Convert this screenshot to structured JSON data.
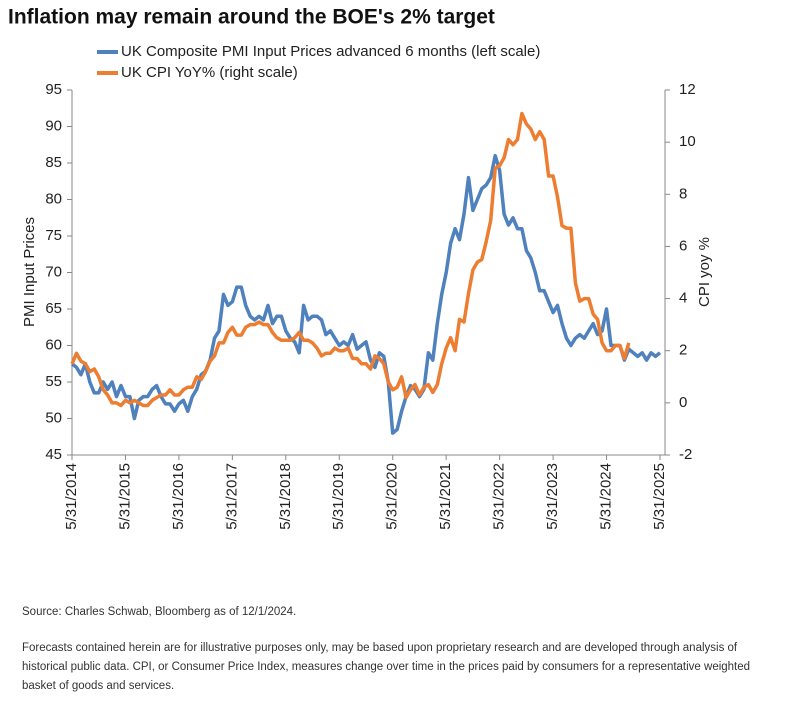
{
  "chart_data": {
    "type": "line",
    "title": "Inflation may remain around the BOE's 2% target",
    "y_label": "PMI Input Prices",
    "y2_label": "CPI yoy %",
    "source": "Source: Charles Schwab, Bloomberg as of 12/1/2024.",
    "note": "Forecasts contained herein are for illustrative purposes only, may be based upon proprietary research and are developed through analysis of historical public data. CPI, or Consumer Price Index, measures change over time in the prices paid by consumers for a representative weighted basket of goods and services.",
    "x": [
      "2014-05",
      "2014-06",
      "2014-07",
      "2014-08",
      "2014-09",
      "2014-10",
      "2014-11",
      "2014-12",
      "2015-01",
      "2015-02",
      "2015-03",
      "2015-04",
      "2015-05",
      "2015-06",
      "2015-07",
      "2015-08",
      "2015-09",
      "2015-10",
      "2015-11",
      "2015-12",
      "2016-01",
      "2016-02",
      "2016-03",
      "2016-04",
      "2016-05",
      "2016-06",
      "2016-07",
      "2016-08",
      "2016-09",
      "2016-10",
      "2016-11",
      "2016-12",
      "2017-01",
      "2017-02",
      "2017-03",
      "2017-04",
      "2017-05",
      "2017-06",
      "2017-07",
      "2017-08",
      "2017-09",
      "2017-10",
      "2017-11",
      "2017-12",
      "2018-01",
      "2018-02",
      "2018-03",
      "2018-04",
      "2018-05",
      "2018-06",
      "2018-07",
      "2018-08",
      "2018-09",
      "2018-10",
      "2018-11",
      "2018-12",
      "2019-01",
      "2019-02",
      "2019-03",
      "2019-04",
      "2019-05",
      "2019-06",
      "2019-07",
      "2019-08",
      "2019-09",
      "2019-10",
      "2019-11",
      "2019-12",
      "2020-01",
      "2020-02",
      "2020-03",
      "2020-04",
      "2020-05",
      "2020-06",
      "2020-07",
      "2020-08",
      "2020-09",
      "2020-10",
      "2020-11",
      "2020-12",
      "2021-01",
      "2021-02",
      "2021-03",
      "2021-04",
      "2021-05",
      "2021-06",
      "2021-07",
      "2021-08",
      "2021-09",
      "2021-10",
      "2021-11",
      "2021-12",
      "2022-01",
      "2022-02",
      "2022-03",
      "2022-04",
      "2022-05",
      "2022-06",
      "2022-07",
      "2022-08",
      "2022-09",
      "2022-10",
      "2022-11",
      "2022-12",
      "2023-01",
      "2023-02",
      "2023-03",
      "2023-04",
      "2023-05",
      "2023-06",
      "2023-07",
      "2023-08",
      "2023-09",
      "2023-10",
      "2023-11",
      "2023-12",
      "2024-01",
      "2024-02",
      "2024-03",
      "2024-04",
      "2024-05",
      "2024-06",
      "2024-07",
      "2024-08",
      "2024-09",
      "2024-10",
      "2024-11",
      "2024-12",
      "2025-01",
      "2025-02",
      "2025-03",
      "2025-04",
      "2025-05"
    ],
    "series": [
      {
        "name": "UK Composite PMI Input Prices advanced 6 months (left scale)",
        "color": "#4f81bd",
        "values": [
          57.5,
          57,
          56,
          57.5,
          55,
          53.5,
          53.5,
          55,
          54,
          55,
          53,
          54.5,
          53,
          53,
          50,
          52.5,
          53,
          53,
          54,
          54.5,
          53,
          52,
          52,
          51,
          52,
          52.5,
          51,
          53,
          54,
          56,
          56.5,
          58,
          61,
          62,
          67,
          65.5,
          66,
          68,
          68,
          65.5,
          64,
          63.5,
          64,
          63.5,
          65.5,
          63,
          64,
          64,
          62,
          61,
          60.5,
          59,
          65.5,
          63.5,
          64,
          64,
          63.5,
          61.5,
          62,
          61,
          60,
          60.5,
          60,
          61.5,
          59.5,
          60,
          60.5,
          58,
          57,
          59,
          58.5,
          55,
          48,
          48.5,
          51,
          53,
          54.5,
          54,
          53,
          54,
          59,
          58,
          63,
          67,
          70,
          74,
          76,
          74.5,
          78,
          83,
          78.5,
          80,
          81.5,
          82,
          83,
          86,
          84,
          78,
          76.5,
          77.5,
          76,
          76,
          73,
          72,
          70,
          67.5,
          67.5,
          66,
          64.5,
          65.5,
          63,
          61,
          60,
          61,
          61.5,
          61,
          62,
          63,
          61.5,
          62,
          65,
          60,
          60,
          60,
          58,
          59.5,
          59,
          58.5,
          59,
          58,
          59,
          58.5,
          59
        ]
      },
      {
        "name": "UK CPI YoY% (right scale)",
        "color": "#ed7d31",
        "axis": "y2",
        "values": [
          1.5,
          1.9,
          1.6,
          1.5,
          1.2,
          1.3,
          1.0,
          0.5,
          0.3,
          0.0,
          0.0,
          -0.1,
          0.1,
          0.0,
          0.1,
          0.0,
          -0.1,
          -0.1,
          0.1,
          0.2,
          0.3,
          0.3,
          0.5,
          0.3,
          0.3,
          0.5,
          0.6,
          0.6,
          1.0,
          0.9,
          1.2,
          1.6,
          1.8,
          2.3,
          2.3,
          2.7,
          2.9,
          2.6,
          2.6,
          2.9,
          3.0,
          3.0,
          3.1,
          3.0,
          3.0,
          2.7,
          2.5,
          2.4,
          2.4,
          2.4,
          2.5,
          2.7,
          2.4,
          2.4,
          2.3,
          2.1,
          1.8,
          1.9,
          1.9,
          2.1,
          2.0,
          2.0,
          2.1,
          1.7,
          1.7,
          1.5,
          1.5,
          1.3,
          1.8,
          1.7,
          1.5,
          0.8,
          0.5,
          0.6,
          1.0,
          0.2,
          0.5,
          0.7,
          0.3,
          0.6,
          0.7,
          0.4,
          0.7,
          1.5,
          2.1,
          2.5,
          2.0,
          3.2,
          3.1,
          4.2,
          5.1,
          5.4,
          5.5,
          6.2,
          7.0,
          9.0,
          9.1,
          9.4,
          10.1,
          9.9,
          10.1,
          11.1,
          10.7,
          10.5,
          10.1,
          10.4,
          10.1,
          8.7,
          8.7,
          7.9,
          6.8,
          6.7,
          6.7,
          4.6,
          3.9,
          4.0,
          4.0,
          3.4,
          3.2,
          2.3,
          2.0,
          2.0,
          2.2,
          2.2,
          1.7,
          2.3,
          null,
          null,
          null,
          null,
          null,
          null,
          null
        ]
      }
    ],
    "xlim": [
      "2014-05",
      "2025-05"
    ],
    "xticks": [
      {
        "value": "2014-05",
        "label": "5/31/2014"
      },
      {
        "value": "2015-05",
        "label": "5/31/2015"
      },
      {
        "value": "2016-05",
        "label": "5/31/2016"
      },
      {
        "value": "2017-05",
        "label": "5/31/2017"
      },
      {
        "value": "2018-05",
        "label": "5/31/2018"
      },
      {
        "value": "2019-05",
        "label": "5/31/2019"
      },
      {
        "value": "2020-05",
        "label": "5/31/2020"
      },
      {
        "value": "2021-05",
        "label": "5/31/2021"
      },
      {
        "value": "2022-05",
        "label": "5/31/2022"
      },
      {
        "value": "2023-05",
        "label": "5/31/2023"
      },
      {
        "value": "2024-05",
        "label": "5/31/2024"
      },
      {
        "value": "2025-05",
        "label": "5/31/2025"
      }
    ],
    "ylim": [
      45,
      95
    ],
    "yticks": [
      45,
      50,
      55,
      60,
      65,
      70,
      75,
      80,
      85,
      90,
      95
    ],
    "y2lim": [
      -2,
      12
    ],
    "y2ticks": [
      -2,
      0,
      2,
      4,
      6,
      8,
      10,
      12
    ]
  }
}
